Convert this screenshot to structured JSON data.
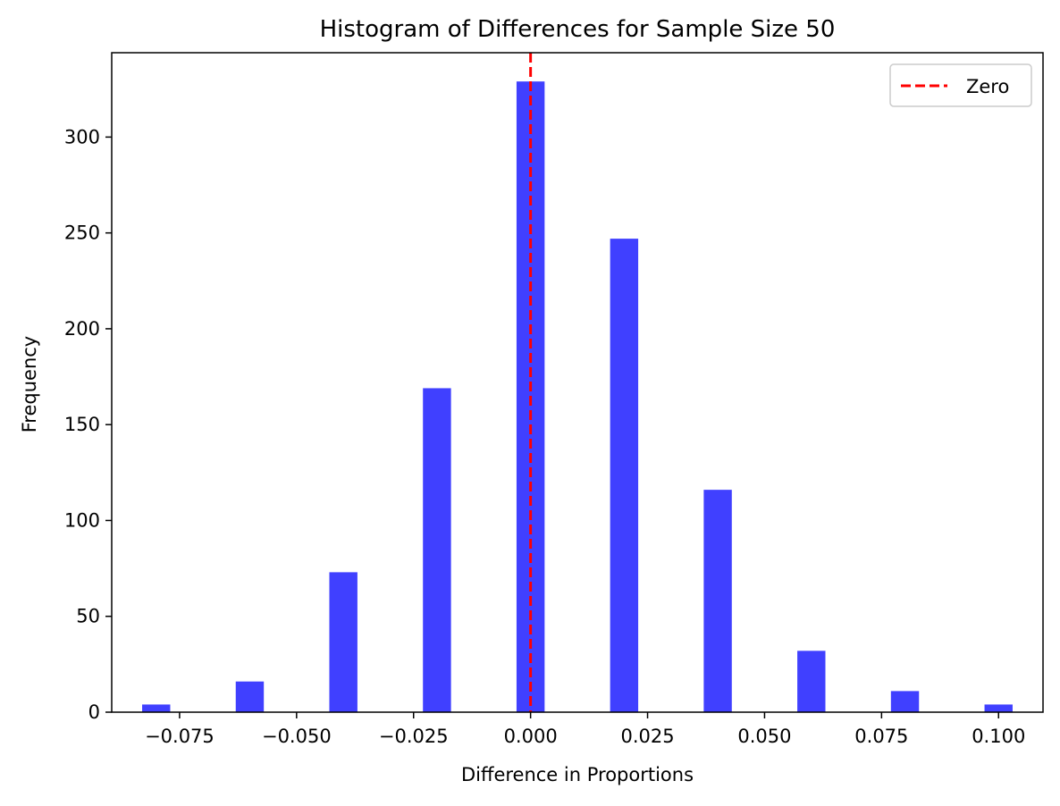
{
  "chart_data": {
    "type": "bar",
    "title": "Histogram of Differences for Sample Size 50",
    "xlabel": "Difference in Proportions",
    "ylabel": "Frequency",
    "xlim": [
      -0.0895,
      0.1095
    ],
    "ylim": [
      0,
      344
    ],
    "x_ticks": [
      -0.075,
      -0.05,
      -0.025,
      0.0,
      0.025,
      0.05,
      0.075,
      0.1
    ],
    "x_tick_labels": [
      "−0.075",
      "−0.050",
      "−0.025",
      "0.000",
      "0.025",
      "0.050",
      "0.075",
      "0.100"
    ],
    "y_ticks": [
      0,
      50,
      100,
      150,
      200,
      250,
      300
    ],
    "y_tick_labels": [
      "0",
      "50",
      "100",
      "150",
      "200",
      "250",
      "300"
    ],
    "bar_color": "#4040ff",
    "bin_width": 0.006,
    "bins": [
      {
        "x": -0.08,
        "value": 4
      },
      {
        "x": -0.06,
        "value": 16
      },
      {
        "x": -0.04,
        "value": 73
      },
      {
        "x": -0.02,
        "value": 169
      },
      {
        "x": 0.0,
        "value": 329
      },
      {
        "x": 0.02,
        "value": 247
      },
      {
        "x": 0.04,
        "value": 116
      },
      {
        "x": 0.06,
        "value": 32
      },
      {
        "x": 0.08,
        "value": 11
      },
      {
        "x": 0.1,
        "value": 4
      }
    ],
    "reference_line": {
      "x": 0.0,
      "label": "Zero",
      "color": "#ff0000",
      "style": "dashed"
    },
    "legend": {
      "placement": "top-right",
      "entries": [
        "Zero"
      ]
    },
    "grid": false
  }
}
